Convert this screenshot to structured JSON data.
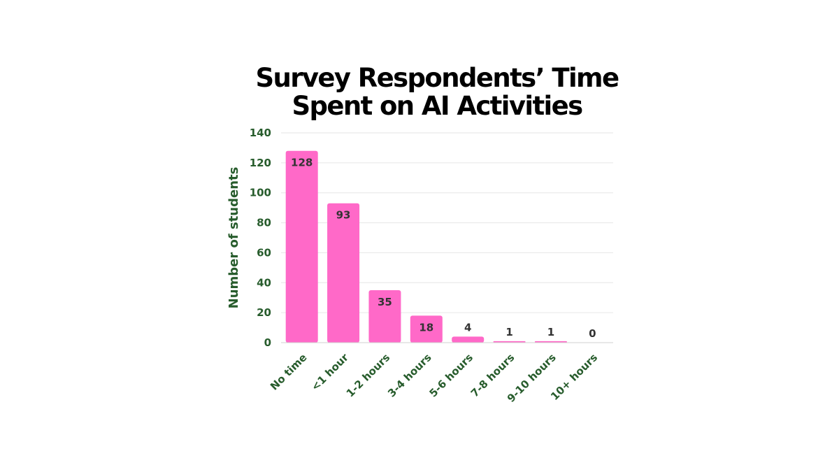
{
  "chart_data": {
    "type": "bar",
    "title_lines": [
      "Survey Respondents’ Time",
      "Spent on AI Activities"
    ],
    "xlabel": "",
    "ylabel": "Number of students",
    "categories": [
      "No time",
      "<1 hour",
      "1-2 hours",
      "3-4 hours",
      "5-6 hours",
      "7-8 hours",
      "9-10 hours",
      "10+ hours"
    ],
    "values": [
      128,
      93,
      35,
      18,
      4,
      1,
      1,
      0
    ],
    "ylim": [
      0,
      140
    ],
    "yticks": [
      "0",
      "20",
      "40",
      "60",
      "80",
      "100",
      "120",
      "140"
    ],
    "grid": true,
    "legend": "none"
  },
  "colors": {
    "bar": "#FF69C8",
    "text": "#275C2C",
    "label": "#333333",
    "grid": "#E6E6E6",
    "title": "#000000"
  }
}
